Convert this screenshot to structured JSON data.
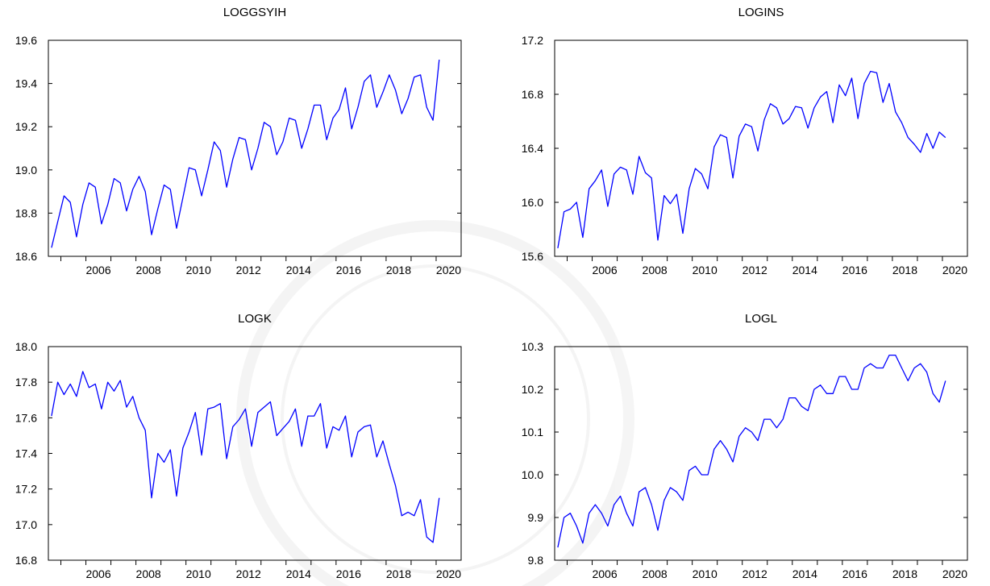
{
  "figure": {
    "line_color": "#0000ff",
    "axis_color": "#000000",
    "background": "#ffffff",
    "watermark_color": "#c8c8c8"
  },
  "chart_data": [
    {
      "type": "line",
      "title": "LOGGSYIH",
      "xlabel": "",
      "ylabel": "",
      "xlim": [
        2004.5,
        2021.0
      ],
      "ylim": [
        18.6,
        19.6
      ],
      "yticks": [
        "18.6",
        "18.8",
        "19.0",
        "19.2",
        "19.4",
        "19.6"
      ],
      "xticks": [
        "2006",
        "2008",
        "2010",
        "2012",
        "2014",
        "2016",
        "2018",
        "2020"
      ],
      "grid": false,
      "series": [
        {
          "x_start": 2004.625,
          "x_step": 0.25,
          "values": [
            18.64,
            18.76,
            18.88,
            18.85,
            18.69,
            18.84,
            18.94,
            18.92,
            18.75,
            18.84,
            18.96,
            18.94,
            18.81,
            18.91,
            18.97,
            18.9,
            18.7,
            18.82,
            18.93,
            18.91,
            18.73,
            18.87,
            19.01,
            19.0,
            18.88,
            19.0,
            19.13,
            19.09,
            18.92,
            19.05,
            19.15,
            19.14,
            19.0,
            19.1,
            19.22,
            19.2,
            19.07,
            19.13,
            19.24,
            19.23,
            19.1,
            19.19,
            19.3,
            19.3,
            19.14,
            19.24,
            19.28,
            19.38,
            19.19,
            19.29,
            19.41,
            19.44,
            19.29,
            19.36,
            19.44,
            19.37,
            19.26,
            19.33,
            19.43,
            19.44,
            19.29,
            19.23,
            19.51
          ]
        }
      ]
    },
    {
      "type": "line",
      "title": "LOGINS",
      "xlabel": "",
      "ylabel": "",
      "xlim": [
        2004.5,
        2021.0
      ],
      "ylim": [
        15.6,
        17.2
      ],
      "yticks": [
        "15.6",
        "16.0",
        "16.4",
        "16.8",
        "17.2"
      ],
      "xticks": [
        "2006",
        "2008",
        "2010",
        "2012",
        "2014",
        "2016",
        "2018",
        "2020"
      ],
      "grid": false,
      "series": [
        {
          "x_start": 2004.625,
          "x_step": 0.25,
          "values": [
            15.66,
            15.93,
            15.95,
            16.0,
            15.74,
            16.1,
            16.16,
            16.24,
            15.97,
            16.21,
            16.26,
            16.24,
            16.06,
            16.34,
            16.22,
            16.18,
            15.72,
            16.05,
            15.99,
            16.06,
            15.77,
            16.1,
            16.25,
            16.21,
            16.1,
            16.41,
            16.5,
            16.48,
            16.18,
            16.49,
            16.58,
            16.56,
            16.38,
            16.61,
            16.73,
            16.7,
            16.58,
            16.62,
            16.71,
            16.7,
            16.55,
            16.7,
            16.78,
            16.82,
            16.59,
            16.87,
            16.79,
            16.92,
            16.62,
            16.88,
            16.97,
            16.96,
            16.74,
            16.88,
            16.67,
            16.59,
            16.48,
            16.43,
            16.37,
            16.51,
            16.4,
            16.52,
            16.48
          ]
        }
      ]
    },
    {
      "type": "line",
      "title": "LOGK",
      "xlabel": "",
      "ylabel": "",
      "xlim": [
        2004.5,
        2021.0
      ],
      "ylim": [
        16.8,
        18.0
      ],
      "yticks": [
        "16.8",
        "17.0",
        "17.2",
        "17.4",
        "17.6",
        "17.8",
        "18.0"
      ],
      "xticks": [
        "2006",
        "2008",
        "2010",
        "2012",
        "2014",
        "2016",
        "2018",
        "2020"
      ],
      "grid": false,
      "series": [
        {
          "x_start": 2004.625,
          "x_step": 0.25,
          "values": [
            17.61,
            17.8,
            17.73,
            17.79,
            17.72,
            17.86,
            17.77,
            17.79,
            17.65,
            17.8,
            17.75,
            17.81,
            17.66,
            17.72,
            17.6,
            17.53,
            17.15,
            17.4,
            17.35,
            17.42,
            17.16,
            17.43,
            17.52,
            17.63,
            17.39,
            17.65,
            17.66,
            17.68,
            17.37,
            17.55,
            17.59,
            17.65,
            17.44,
            17.63,
            17.66,
            17.69,
            17.5,
            17.54,
            17.58,
            17.65,
            17.44,
            17.61,
            17.61,
            17.68,
            17.43,
            17.55,
            17.53,
            17.61,
            17.38,
            17.52,
            17.55,
            17.56,
            17.38,
            17.47,
            17.34,
            17.22,
            17.05,
            17.07,
            17.05,
            17.14,
            16.93,
            16.9,
            17.15
          ]
        }
      ]
    },
    {
      "type": "line",
      "title": "LOGL",
      "xlabel": "",
      "ylabel": "",
      "xlim": [
        2004.5,
        2021.0
      ],
      "ylim": [
        9.8,
        10.3
      ],
      "yticks": [
        "9.8",
        "9.9",
        "10.0",
        "10.1",
        "10.2",
        "10.3"
      ],
      "xticks": [
        "2006",
        "2008",
        "2010",
        "2012",
        "2014",
        "2016",
        "2018",
        "2020"
      ],
      "grid": false,
      "series": [
        {
          "x_start": 2004.625,
          "x_step": 0.25,
          "values": [
            9.83,
            9.9,
            9.91,
            9.88,
            9.84,
            9.91,
            9.93,
            9.91,
            9.88,
            9.93,
            9.95,
            9.91,
            9.88,
            9.96,
            9.97,
            9.93,
            9.87,
            9.94,
            9.97,
            9.96,
            9.94,
            10.01,
            10.02,
            10.0,
            10.0,
            10.06,
            10.08,
            10.06,
            10.03,
            10.09,
            10.11,
            10.1,
            10.08,
            10.13,
            10.13,
            10.11,
            10.13,
            10.18,
            10.18,
            10.16,
            10.15,
            10.2,
            10.21,
            10.19,
            10.19,
            10.23,
            10.23,
            10.2,
            10.2,
            10.25,
            10.26,
            10.25,
            10.25,
            10.28,
            10.28,
            10.25,
            10.22,
            10.25,
            10.26,
            10.24,
            10.19,
            10.17,
            10.22
          ]
        }
      ]
    }
  ]
}
